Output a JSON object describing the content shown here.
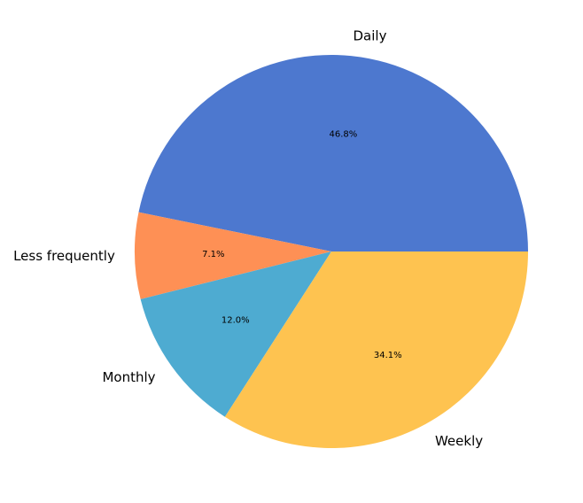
{
  "chart_data": {
    "type": "pie",
    "title": "",
    "start_angle_deg": 0,
    "direction": "counterclockwise",
    "slices": [
      {
        "label": "Daily",
        "value": 46.8,
        "pct_label": "46.8%",
        "color": "#4d78cf"
      },
      {
        "label": "Less frequently",
        "value": 7.1,
        "pct_label": "7.1%",
        "color": "#fe9055"
      },
      {
        "label": "Monthly",
        "value": 12.0,
        "pct_label": "12.0%",
        "color": "#4eabd1"
      },
      {
        "label": "Weekly",
        "value": 34.1,
        "pct_label": "34.1%",
        "color": "#fec350"
      }
    ]
  }
}
